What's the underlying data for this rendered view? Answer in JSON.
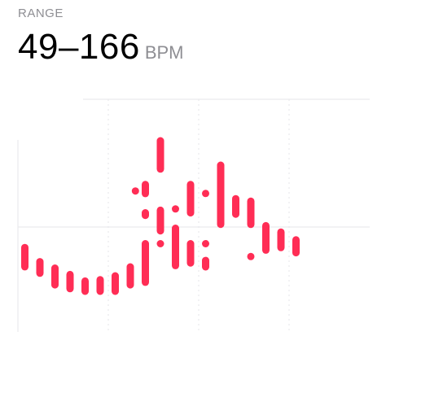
{
  "header": {
    "label": "RANGE",
    "value": "49–166",
    "unit": "BPM"
  },
  "colors": {
    "accent": "#ff2d55",
    "gridline": "#e5e5ea",
    "label": "#8e8e93"
  },
  "chart_data": {
    "type": "range-bar",
    "title": "",
    "xlabel": "",
    "ylabel": "",
    "ylim": [
      40,
      190
    ],
    "grid": true,
    "legend": "none",
    "x_grid_slots": 4,
    "bar_slots": 4,
    "marks": [
      {
        "slot": 0,
        "low": 68,
        "high": 83
      },
      {
        "slot": 0.5,
        "low": 63,
        "high": 72
      },
      {
        "slot": 1,
        "low": 54,
        "high": 67
      },
      {
        "slot": 1.5,
        "low": 51,
        "high": 62
      },
      {
        "slot": 2,
        "low": 49,
        "high": 57
      },
      {
        "slot": 2.5,
        "low": 49,
        "high": 58
      },
      {
        "slot": 3,
        "low": 49,
        "high": 61
      },
      {
        "slot": 3.5,
        "low": 54,
        "high": 68
      },
      {
        "slot": 3.67,
        "low": 127,
        "high": 127
      },
      {
        "slot": 4,
        "low": 56,
        "high": 86
      },
      {
        "slot": 4,
        "low": 108,
        "high": 110
      },
      {
        "slot": 4,
        "low": 125,
        "high": 132
      },
      {
        "slot": 4.5,
        "low": 86,
        "high": 86
      },
      {
        "slot": 4.5,
        "low": 96,
        "high": 112
      },
      {
        "slot": 4.5,
        "low": 144,
        "high": 166
      },
      {
        "slot": 5,
        "low": 69,
        "high": 98
      },
      {
        "slot": 5,
        "low": 113,
        "high": 113
      },
      {
        "slot": 5.5,
        "low": 71,
        "high": 86
      },
      {
        "slot": 5.5,
        "low": 110,
        "high": 132
      },
      {
        "slot": 6,
        "low": 68,
        "high": 73
      },
      {
        "slot": 6,
        "low": 86,
        "high": 86
      },
      {
        "slot": 6,
        "low": 125,
        "high": 125
      },
      {
        "slot": 6.5,
        "low": 101,
        "high": 147
      },
      {
        "slot": 7,
        "low": 109,
        "high": 121
      },
      {
        "slot": 7.5,
        "low": 76,
        "high": 76
      },
      {
        "slot": 7.5,
        "low": 101,
        "high": 119
      },
      {
        "slot": 8,
        "low": 81,
        "high": 100
      },
      {
        "slot": 8.5,
        "low": 83,
        "high": 95
      },
      {
        "slot": 9,
        "low": 79,
        "high": 89
      }
    ]
  }
}
